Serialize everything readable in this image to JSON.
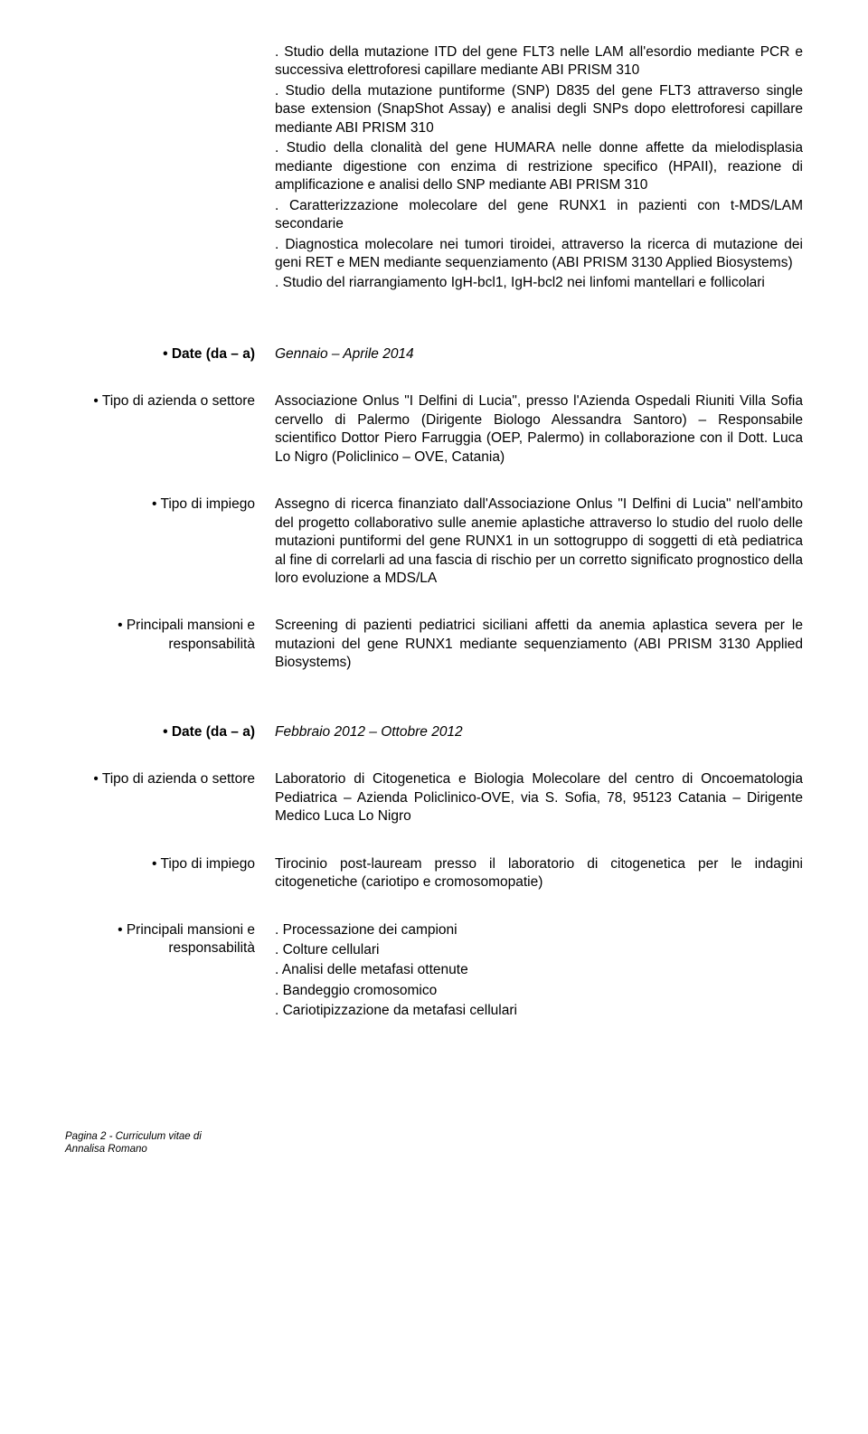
{
  "intro": {
    "lines": [
      ". Studio della mutazione ITD del gene FLT3 nelle LAM all'esordio mediante PCR e successiva elettroforesi capillare mediante ABI PRISM 310",
      ". Studio della mutazione puntiforme (SNP) D835 del gene FLT3 attraverso single base extension (SnapShot Assay) e analisi degli SNPs dopo elettroforesi capillare mediante ABI PRISM 310",
      ". Studio della clonalità del gene HUMARA nelle donne affette da mielodisplasia mediante digestione con enzima di restrizione specifico (HPAII), reazione di amplificazione e analisi dello SNP mediante ABI PRISM 310",
      ". Caratterizzazione molecolare del gene RUNX1 in pazienti con t-MDS/LAM secondarie",
      ". Diagnostica molecolare nei tumori tiroidei, attraverso la ricerca di mutazione dei geni RET e MEN mediante sequenziamento (ABI PRISM 3130 Applied Biosystems)",
      ". Studio del riarrangiamento IgH-bcl1, IgH-bcl2 nei linfomi mantellari e follicolari"
    ]
  },
  "section1": {
    "date_label": "• Date (da – a)",
    "date_value": "Gennaio – Aprile 2014",
    "settore_label": "• Tipo di azienda o settore",
    "settore_value": "Associazione Onlus \"I Delfini di Lucia\", presso l'Azienda Ospedali Riuniti Villa Sofia cervello di Palermo (Dirigente Biologo Alessandra Santoro) – Responsabile scientifico Dottor Piero Farruggia (OEP, Palermo) in collaborazione con il Dott. Luca Lo Nigro (Policlinico – OVE, Catania)",
    "impiego_label": "• Tipo di impiego",
    "impiego_value": "Assegno di ricerca finanziato dall'Associazione Onlus \"I Delfini di Lucia\" nell'ambito del progetto collaborativo sulle anemie aplastiche attraverso lo studio del ruolo delle mutazioni puntiformi del gene RUNX1 in un sottogruppo di soggetti di età pediatrica al fine di correlarli ad una fascia di rischio per un corretto significato prognostico della loro evoluzione a MDS/LA",
    "mansioni_label": "• Principali mansioni e responsabilità",
    "mansioni_value": "Screening di pazienti pediatrici siciliani affetti da anemia aplastica severa per le mutazioni del gene RUNX1 mediante sequenziamento (ABI PRISM 3130 Applied Biosystems)"
  },
  "section2": {
    "date_label": "• Date (da – a)",
    "date_value": "Febbraio 2012 – Ottobre 2012",
    "settore_label": "• Tipo di azienda o settore",
    "settore_value": "Laboratorio di Citogenetica e Biologia Molecolare del centro di Oncoematologia Pediatrica – Azienda Policlinico-OVE, via S. Sofia, 78, 95123 Catania – Dirigente Medico Luca Lo Nigro",
    "impiego_label": "• Tipo di impiego",
    "impiego_value": "Tirocinio post-lauream presso il laboratorio di citogenetica per le indagini citogenetiche (cariotipo e cromosomopatie)",
    "mansioni_label": "• Principali mansioni e responsabilità",
    "mansioni_lines": [
      ". Processazione dei campioni",
      ". Colture cellulari",
      ". Analisi delle metafasi ottenute",
      ". Bandeggio cromosomico",
      ". Cariotipizzazione da metafasi cellulari"
    ]
  },
  "footer": {
    "line1": "Pagina 2 - Curriculum vitae di",
    "line2": "Annalisa Romano"
  }
}
